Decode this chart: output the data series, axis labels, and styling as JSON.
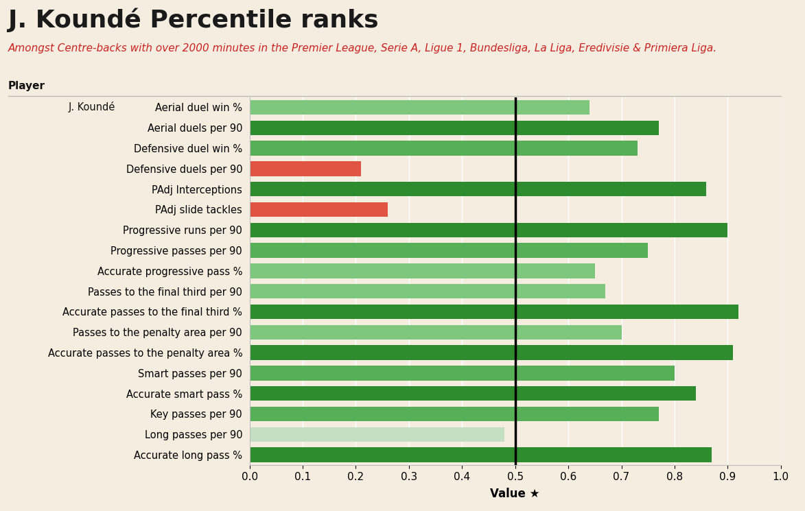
{
  "title": "J. Koundé Percentile ranks",
  "subtitle": "Amongst Centre-backs with over 2000 minutes in the Premier League, Serie A, Ligue 1, Bundesliga, La Liga, Eredivisie & Primiera Liga.",
  "player_label": "J. Koundé",
  "column_header": "Player",
  "xlabel": "Value ★",
  "categories": [
    "Aerial duel win %",
    "Aerial duels per 90",
    "Defensive duel win %",
    "Defensive duels per 90",
    "PAdj Interceptions",
    "PAdj slide tackles",
    "Progressive runs per 90",
    "Progressive passes per 90",
    "Accurate progressive pass %",
    "Passes to the final third per 90",
    "Accurate passes to the final third %",
    "Passes to the penalty area per 90",
    "Accurate passes to the penalty area %",
    "Smart passes per 90",
    "Accurate smart pass %",
    "Key passes per 90",
    "Long passes per 90",
    "Accurate long pass %"
  ],
  "values": [
    0.64,
    0.77,
    0.73,
    0.21,
    0.86,
    0.26,
    0.9,
    0.75,
    0.65,
    0.67,
    0.92,
    0.7,
    0.91,
    0.8,
    0.84,
    0.77,
    0.48,
    0.87
  ],
  "colors": [
    "#7dc87d",
    "#2e8b2e",
    "#57b057",
    "#e05444",
    "#2e8b2e",
    "#e05444",
    "#2e8b2e",
    "#57b057",
    "#7dc87d",
    "#7dc87d",
    "#2e8b2e",
    "#7dc87d",
    "#2e8b2e",
    "#57b057",
    "#2e8b2e",
    "#57b057",
    "#c5dfc5",
    "#2e8b2e"
  ],
  "background_color": "#f5ede0",
  "vline_x": 0.5,
  "xlim": [
    0.0,
    1.0
  ],
  "xticks": [
    0.0,
    0.1,
    0.2,
    0.3,
    0.4,
    0.5,
    0.6,
    0.7,
    0.8,
    0.9,
    1.0
  ],
  "title_fontsize": 26,
  "subtitle_fontsize": 11,
  "bar_height": 0.72,
  "separator_line_color": "#bbbbbb"
}
